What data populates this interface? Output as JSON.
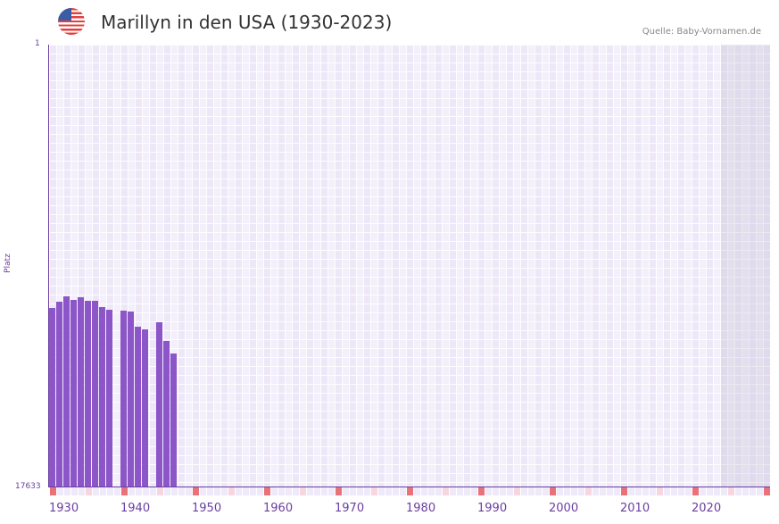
{
  "header": {
    "flag_icon": "us-flag-icon",
    "title": "Marillyn in den USA (1930-2023)",
    "source": "Quelle: Baby-Vornamen.de"
  },
  "axis": {
    "y_top_label": "1",
    "y_bottom_label": "17633",
    "y_title": "Platz",
    "x_ticks": [
      "1930",
      "1940",
      "1950",
      "1960",
      "1970",
      "1980",
      "1990",
      "2000",
      "2010",
      "2020"
    ]
  },
  "colors": {
    "bar": "#8c55c8",
    "axis": "#6a3ea1",
    "decade_marker": "#e8727a",
    "half_decade_marker": "#f6d6df"
  },
  "chart_data": {
    "type": "bar",
    "title": "Marillyn in den USA (1930-2023)",
    "xlabel": "",
    "ylabel": "Platz",
    "ylim": [
      17633,
      1
    ],
    "y_inverted": true,
    "x_range": [
      1930,
      2030
    ],
    "categories": [
      1930,
      1931,
      1932,
      1933,
      1934,
      1935,
      1936,
      1937,
      1938,
      1939,
      1940,
      1941,
      1942,
      1943,
      1944,
      1945,
      1946,
      1947
    ],
    "values": [
      10510,
      10260,
      10050,
      10190,
      10080,
      10220,
      10220,
      10470,
      10580,
      null,
      10610,
      10650,
      11260,
      11360,
      null,
      11080,
      11830,
      12330
    ],
    "grid": true,
    "legend": null,
    "annotations": [
      "Quelle: Baby-Vornamen.de"
    ]
  }
}
